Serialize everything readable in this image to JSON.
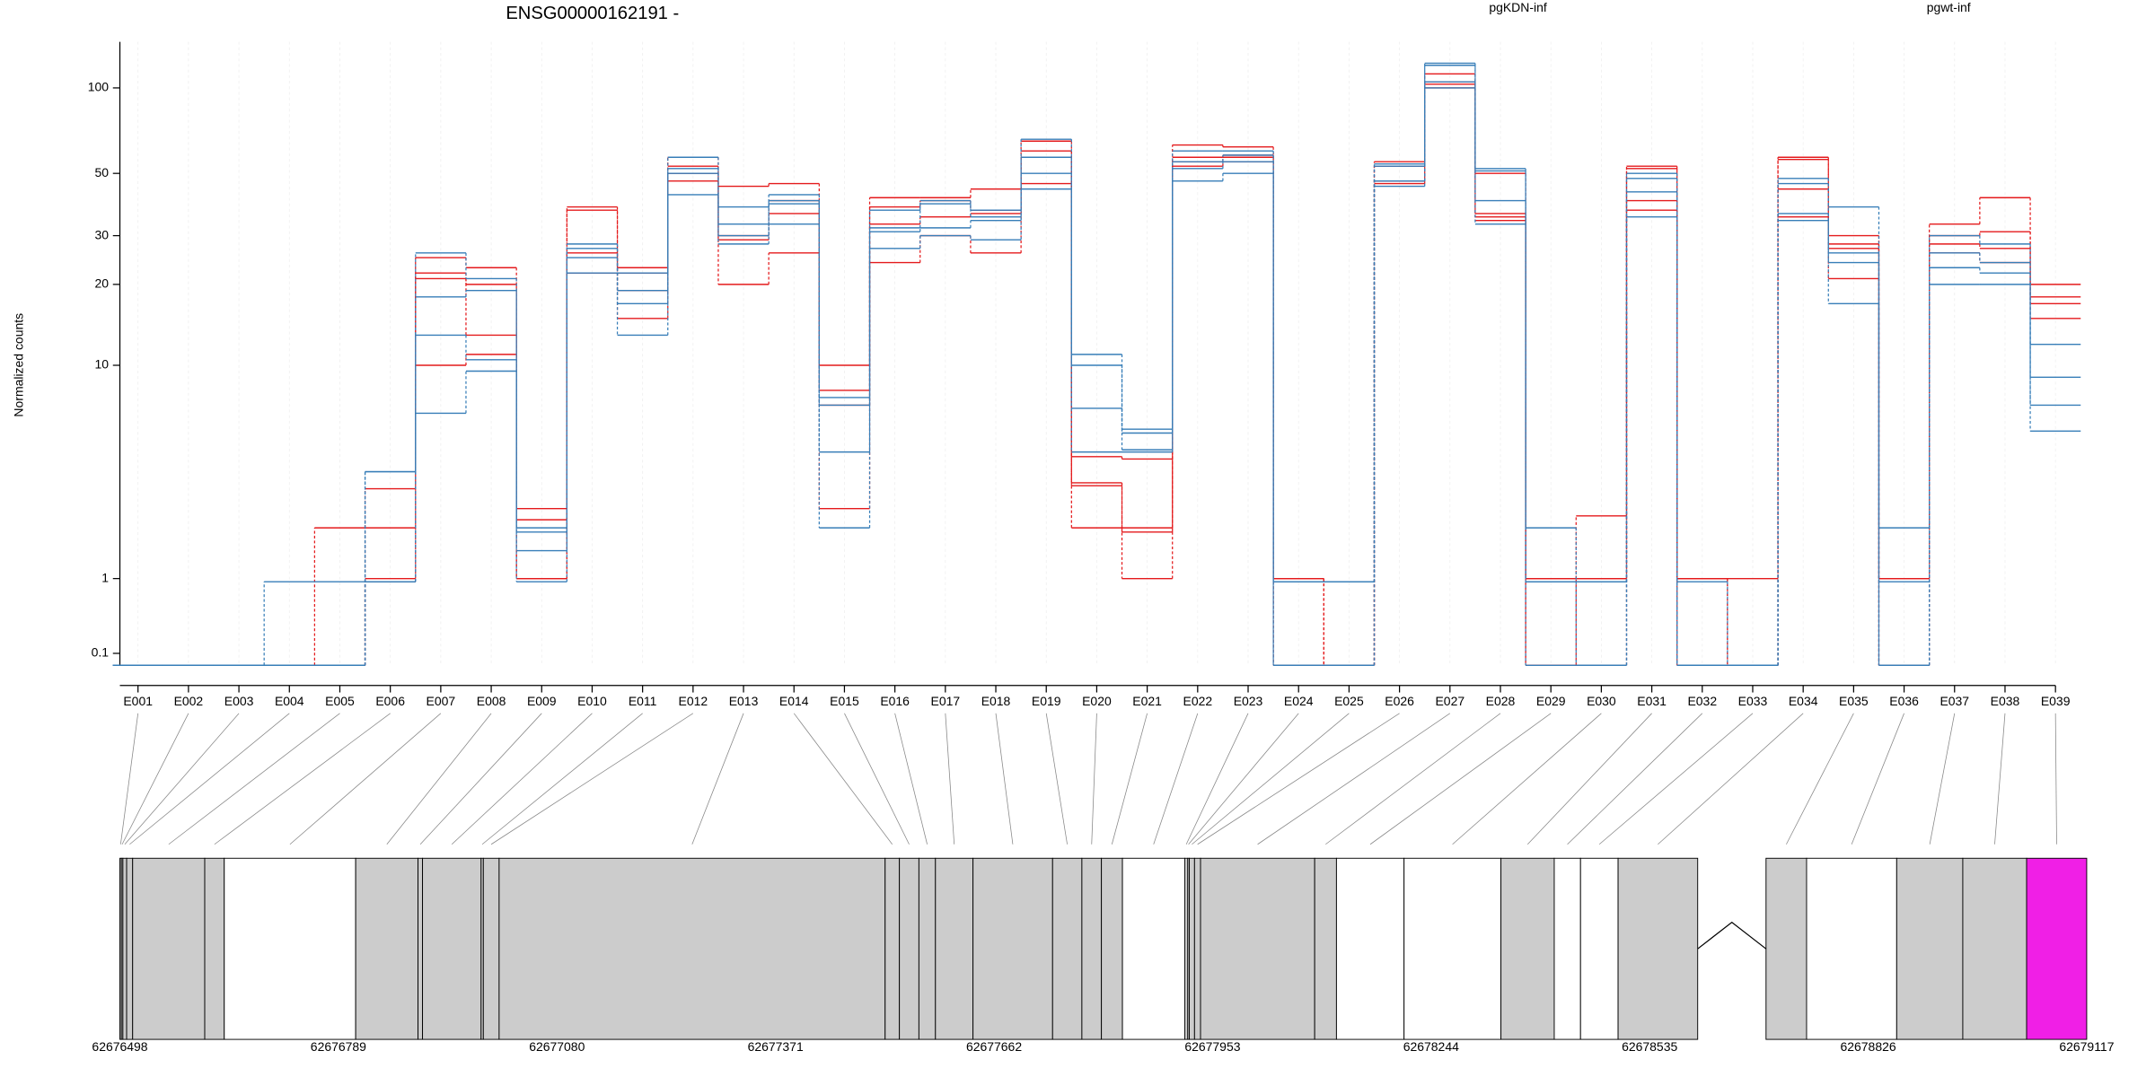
{
  "chart_data": [
    {
      "type": "line",
      "title": "ENSG00000162191 -",
      "ylabel": "Normalized counts",
      "yscale": "log1p",
      "grid": true,
      "ylim": [
        0,
        145
      ],
      "yticks": [
        0.1,
        1,
        10,
        20,
        30,
        50,
        100
      ],
      "categories": [
        "E001",
        "E002",
        "E003",
        "E004",
        "E005",
        "E006",
        "E007",
        "E008",
        "E009",
        "E010",
        "E011",
        "E012",
        "E013",
        "E014",
        "E015",
        "E016",
        "E017",
        "E018",
        "E019",
        "E020",
        "E021",
        "E022",
        "E023",
        "E024",
        "E025",
        "E026",
        "E027",
        "E028",
        "E029",
        "E030",
        "E031",
        "E032",
        "E033",
        "E034",
        "E035",
        "E036",
        "E037",
        "E038",
        "E039"
      ],
      "series": [
        {
          "name": "pgKDN-inf",
          "color": "#e41a1c",
          "values": [
            [
              0,
              0,
              0,
              0,
              2,
              3.1,
              25,
              23,
              2.5,
              38,
              23,
              57,
              45,
              46,
              10,
              41,
              41,
              44,
              65,
              4.3,
              4.2,
              63,
              62,
              1,
              0,
              55,
              112,
              50,
              1,
              2.3,
              53,
              1,
              1,
              57,
              30,
              1,
              33,
              41,
              20
            ],
            [
              0,
              0,
              0,
              0,
              0,
              2,
              22,
              20,
              2.2,
              37,
              22,
              53,
              30,
              40,
              8,
              38,
              40,
              37,
              60,
              3.3,
              2,
              57,
              58,
              1,
              0,
              53,
              105,
              36,
              1,
              1,
              52,
              1,
              0,
              56,
              28,
              1,
              30,
              31,
              18
            ],
            [
              0,
              0,
              0,
              0,
              0,
              1,
              21,
              13,
              1,
              26,
              19,
              50,
              29,
              36,
              7,
              33,
              35,
              36,
              57,
              3.2,
              1.9,
              55,
              57,
              0,
              0,
              47,
              103,
              35,
              0,
              1,
              40,
              1,
              0,
              44,
              27,
              0,
              28,
              27,
              17
            ],
            [
              0,
              0,
              0,
              0,
              0,
              0.95,
              10,
              11,
              1,
              22,
              15,
              47,
              20,
              26,
              2.5,
              24,
              30,
              26,
              46,
              2,
              1,
              53,
              55,
              0,
              0,
              46,
              100,
              34,
              0,
              0,
              37,
              0,
              0,
              35,
              21,
              0,
              26,
              24,
              15
            ]
          ]
        },
        {
          "name": "pgwt-inf",
          "color": "#377eb8",
          "values": [
            [
              0,
              0,
              0,
              0.95,
              0.95,
              3.7,
              26,
              21,
              2,
              28,
              22,
              57,
              38,
              42,
              7.5,
              37,
              40,
              37,
              66,
              11,
              5.6,
              60,
              60,
              0.95,
              0.95,
              54,
              122,
              52,
              2,
              0.95,
              50,
              0.95,
              0,
              48,
              38,
              2,
              30,
              28,
              12
            ],
            [
              0,
              0,
              0,
              0,
              0,
              3.7,
              18,
              19,
              1.9,
              27,
              19,
              52,
              33,
              40,
              7,
              32,
              39,
              35,
              57,
              10,
              5.4,
              55,
              58,
              0.95,
              0.95,
              53,
              120,
              51,
              0.95,
              0.95,
              48,
              0,
              0,
              46,
              26,
              0.95,
              26,
              24,
              9
            ],
            [
              0,
              0,
              0,
              0,
              0,
              0.95,
              13,
              10.5,
              1.5,
              25,
              17,
              50,
              30,
              39,
              4.5,
              31,
              32,
              34,
              50,
              6.8,
              4.6,
              52,
              55,
              0,
              0,
              47,
              105,
              40,
              0.95,
              0,
              43,
              0,
              0,
              36,
              24,
              0,
              23,
              22,
              7
            ],
            [
              0,
              0,
              0,
              0,
              0,
              0.95,
              6.5,
              9.5,
              0.95,
              22,
              13,
              42,
              28,
              33,
              2,
              27,
              30,
              29,
              44,
              4.5,
              4.5,
              47,
              50,
              0,
              0,
              45,
              100,
              33,
              0,
              0,
              35,
              0,
              0,
              34,
              17,
              0,
              20,
              20,
              5.5
            ]
          ]
        }
      ]
    },
    {
      "type": "gene_model",
      "xlim": [
        62676498,
        62679117
      ],
      "xticks": [
        62676498,
        62676789,
        62677080,
        62677371,
        62677662,
        62677953,
        62678244,
        62678535,
        62678826,
        62679117
      ],
      "parts": [
        {
          "start": 62676498,
          "end": 62676500,
          "color": "#cccccc"
        },
        {
          "start": 62676500,
          "end": 62676502,
          "color": "#cccccc"
        },
        {
          "start": 62676502,
          "end": 62676507,
          "color": "#cccccc"
        },
        {
          "start": 62676507,
          "end": 62676515,
          "color": "#cccccc"
        },
        {
          "start": 62676515,
          "end": 62676611,
          "color": "#cccccc"
        },
        {
          "start": 62676611,
          "end": 62676637,
          "color": "#cccccc"
        },
        {
          "start": 62676637,
          "end": 62676812,
          "color": "#ffffff"
        },
        {
          "start": 62676812,
          "end": 62676895,
          "color": "#cccccc"
        },
        {
          "start": 62676895,
          "end": 62676901,
          "color": "#cccccc"
        },
        {
          "start": 62676901,
          "end": 62676979,
          "color": "#cccccc"
        },
        {
          "start": 62676979,
          "end": 62676982,
          "color": "#cccccc"
        },
        {
          "start": 62676982,
          "end": 62677003,
          "color": "#cccccc"
        },
        {
          "start": 62677003,
          "end": 62677517,
          "color": "#cccccc"
        },
        {
          "start": 62677517,
          "end": 62677536,
          "color": "#cccccc"
        },
        {
          "start": 62677536,
          "end": 62677562,
          "color": "#cccccc"
        },
        {
          "start": 62677562,
          "end": 62677584,
          "color": "#cccccc"
        },
        {
          "start": 62677584,
          "end": 62677634,
          "color": "#cccccc"
        },
        {
          "start": 62677634,
          "end": 62677740,
          "color": "#cccccc"
        },
        {
          "start": 62677740,
          "end": 62677779,
          "color": "#cccccc"
        },
        {
          "start": 62677779,
          "end": 62677805,
          "color": "#cccccc"
        },
        {
          "start": 62677805,
          "end": 62677833,
          "color": "#cccccc"
        },
        {
          "start": 62677833,
          "end": 62677916,
          "color": "#ffffff"
        },
        {
          "start": 62677916,
          "end": 62677920,
          "color": "#cccccc"
        },
        {
          "start": 62677920,
          "end": 62677922,
          "color": "#cccccc"
        },
        {
          "start": 62677922,
          "end": 62677929,
          "color": "#cccccc"
        },
        {
          "start": 62677929,
          "end": 62677937,
          "color": "#cccccc"
        },
        {
          "start": 62677937,
          "end": 62678089,
          "color": "#cccccc"
        },
        {
          "start": 62678089,
          "end": 62678118,
          "color": "#cccccc"
        },
        {
          "start": 62678118,
          "end": 62678208,
          "color": "#ffffff"
        },
        {
          "start": 62678208,
          "end": 62678337,
          "color": "#ffffff"
        },
        {
          "start": 62678337,
          "end": 62678408,
          "color": "#cccccc"
        },
        {
          "start": 62678408,
          "end": 62678443,
          "color": "#ffffff"
        },
        {
          "start": 62678443,
          "end": 62678493,
          "color": "#ffffff"
        },
        {
          "start": 62678493,
          "end": 62678599,
          "color": "#cccccc"
        },
        {
          "start": 62678690,
          "end": 62678744,
          "color": "#cccccc"
        },
        {
          "start": 62678744,
          "end": 62678864,
          "color": "#ffffff"
        },
        {
          "start": 62678864,
          "end": 62678952,
          "color": "#cccccc"
        },
        {
          "start": 62678952,
          "end": 62679037,
          "color": "#cccccc"
        },
        {
          "start": 62679037,
          "end": 62679117,
          "color": "#f01fe6"
        }
      ]
    }
  ]
}
